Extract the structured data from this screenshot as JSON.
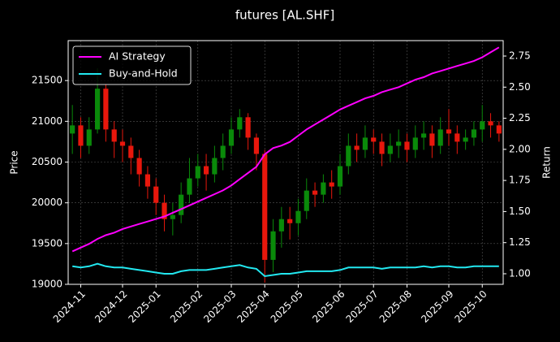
{
  "chart_data": {
    "type": "candlestick",
    "title": "futures [AL.SHF]",
    "ylabel": "Price",
    "y2label": "Return",
    "categories": [
      null,
      "2024-11",
      null,
      null,
      null,
      null,
      "2024-12",
      null,
      null,
      null,
      "2025-01",
      null,
      null,
      null,
      null,
      "2025-02",
      null,
      null,
      null,
      "2025-03",
      null,
      null,
      null,
      "2025-04",
      null,
      null,
      null,
      "2025-05",
      null,
      null,
      null,
      null,
      "2025-06",
      null,
      null,
      null,
      "2025-07",
      null,
      null,
      null,
      "2025-08",
      null,
      null,
      null,
      null,
      "2025-09",
      null,
      null,
      null,
      "2025-10",
      null,
      null
    ],
    "open": [
      20850,
      20950,
      20700,
      20900,
      21400,
      20900,
      20750,
      20700,
      20550,
      20350,
      20200,
      20000,
      19800,
      19850,
      20100,
      20300,
      20450,
      20350,
      20550,
      20700,
      20900,
      21050,
      20800,
      20600,
      19300,
      19650,
      19800,
      19750,
      19900,
      20150,
      20100,
      20250,
      20200,
      20450,
      20700,
      20650,
      20800,
      20750,
      20600,
      20700,
      20750,
      20650,
      20800,
      20850,
      20700,
      20900,
      20850,
      20750,
      20800,
      20900,
      21000,
      20950
    ],
    "high": [
      21200,
      21050,
      21050,
      21650,
      21450,
      21000,
      20900,
      20800,
      20650,
      20450,
      20300,
      20100,
      20000,
      20250,
      20550,
      20600,
      20600,
      20700,
      20850,
      21050,
      21150,
      21100,
      20850,
      20650,
      19800,
      19950,
      19950,
      20050,
      20300,
      20250,
      20350,
      20400,
      20600,
      20850,
      20850,
      20950,
      20900,
      20850,
      20850,
      20900,
      20850,
      20950,
      21000,
      20950,
      21050,
      21150,
      20950,
      20900,
      21000,
      21200,
      21100,
      21000
    ],
    "low": [
      20600,
      20550,
      20600,
      20850,
      20750,
      20550,
      20500,
      20350,
      20200,
      20050,
      19850,
      19650,
      19600,
      19750,
      20000,
      20200,
      20150,
      20250,
      20400,
      20600,
      20800,
      20650,
      20400,
      19020,
      19150,
      19450,
      19550,
      19600,
      19800,
      19950,
      20000,
      20050,
      20100,
      20350,
      20500,
      20550,
      20600,
      20450,
      20500,
      20550,
      20500,
      20550,
      20650,
      20550,
      20600,
      20700,
      20600,
      20650,
      20700,
      20750,
      20800,
      20750
    ],
    "close": [
      20950,
      20700,
      20900,
      21400,
      20900,
      20750,
      20700,
      20550,
      20350,
      20200,
      20000,
      19800,
      19850,
      20100,
      20300,
      20450,
      20350,
      20550,
      20700,
      20900,
      21050,
      20800,
      20600,
      19300,
      19650,
      19800,
      19750,
      19900,
      20150,
      20100,
      20250,
      20200,
      20450,
      20700,
      20650,
      20800,
      20750,
      20600,
      20700,
      20750,
      20650,
      20800,
      20850,
      20700,
      20900,
      20850,
      20750,
      20800,
      20900,
      21000,
      20950,
      20850
    ],
    "up_color": "#0a8a0a",
    "down_color": "#e8170c",
    "series": [
      {
        "name": "AI Strategy",
        "color": "#ff00ff",
        "axis": "y2",
        "values": [
          1.18,
          1.21,
          1.24,
          1.28,
          1.31,
          1.33,
          1.36,
          1.38,
          1.4,
          1.42,
          1.44,
          1.46,
          1.49,
          1.52,
          1.55,
          1.58,
          1.61,
          1.64,
          1.67,
          1.71,
          1.76,
          1.81,
          1.86,
          1.96,
          2.01,
          2.03,
          2.06,
          2.11,
          2.16,
          2.2,
          2.24,
          2.28,
          2.32,
          2.35,
          2.38,
          2.41,
          2.43,
          2.46,
          2.48,
          2.5,
          2.53,
          2.56,
          2.58,
          2.61,
          2.63,
          2.65,
          2.67,
          2.69,
          2.71,
          2.74,
          2.78,
          2.82
        ]
      },
      {
        "name": "Buy-and-Hold",
        "color": "#22e8f0",
        "axis": "y2",
        "values": [
          1.06,
          1.05,
          1.06,
          1.08,
          1.06,
          1.05,
          1.05,
          1.04,
          1.03,
          1.02,
          1.01,
          1.0,
          1.0,
          1.02,
          1.03,
          1.03,
          1.03,
          1.04,
          1.05,
          1.06,
          1.07,
          1.05,
          1.04,
          0.98,
          0.99,
          1.0,
          1.0,
          1.01,
          1.02,
          1.02,
          1.02,
          1.02,
          1.03,
          1.05,
          1.05,
          1.05,
          1.05,
          1.04,
          1.05,
          1.05,
          1.05,
          1.05,
          1.06,
          1.05,
          1.06,
          1.06,
          1.05,
          1.05,
          1.06,
          1.06,
          1.06,
          1.06
        ]
      }
    ],
    "ylim": [
      19000,
      21990
    ],
    "yticks": [
      19000,
      19500,
      20000,
      20500,
      21000,
      21500
    ],
    "y2lim": [
      0.915,
      2.874
    ],
    "y2ticks": [
      {
        "value": 1,
        "label": "1.00"
      },
      1.25,
      {
        "value": 1.5,
        "label": "1.50"
      },
      1.75,
      {
        "value": 2,
        "label": "2.00"
      },
      2.25,
      {
        "value": 2.5,
        "label": "2.50"
      },
      2.75
    ],
    "grid": true,
    "legend": "upper left"
  }
}
